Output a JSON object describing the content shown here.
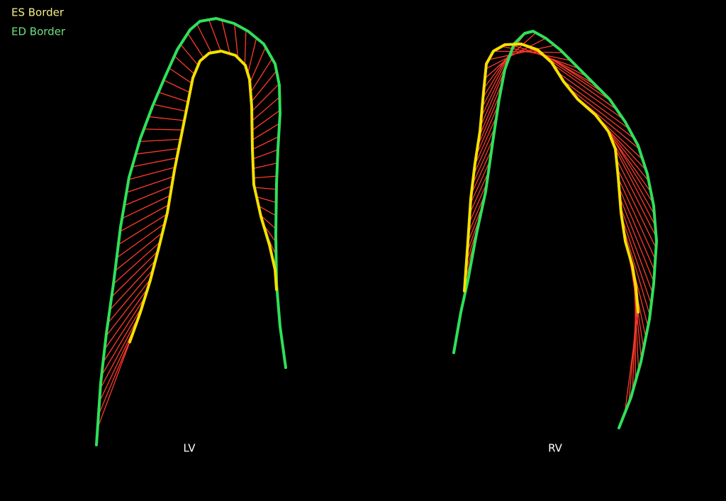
{
  "legend": {
    "es_border": "ES Border",
    "ed_border": "ED Border"
  },
  "labels": {
    "lv": "LV",
    "rv": "RV"
  }
}
